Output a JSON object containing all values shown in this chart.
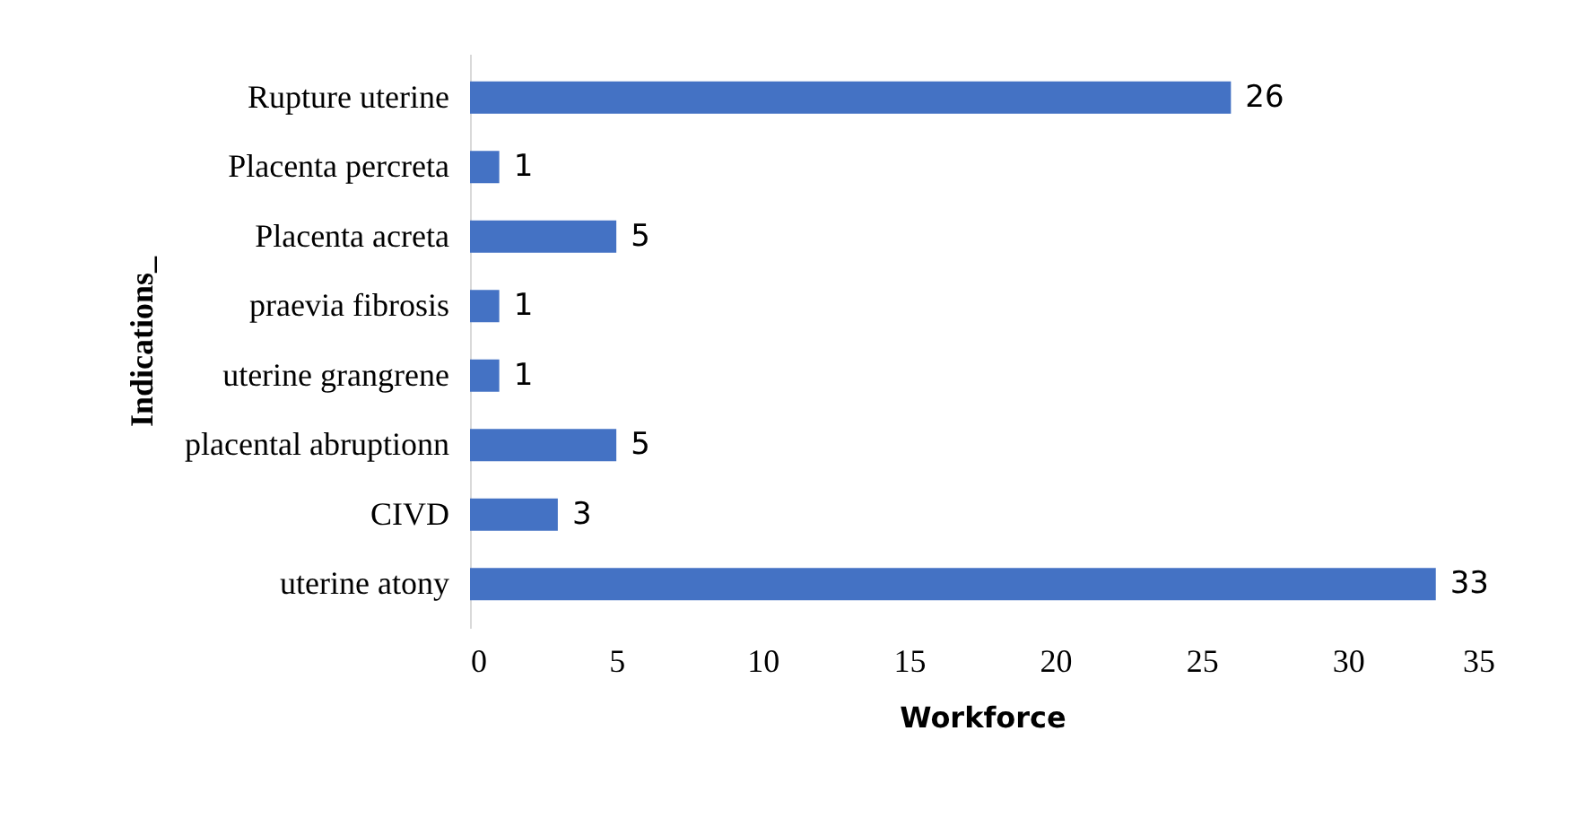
{
  "chart_data": {
    "type": "bar",
    "orientation": "horizontal",
    "xlabel": "Workforce",
    "ylabel": "Indications_",
    "categories": [
      "Rupture uterine",
      "Placenta percreta",
      "Placenta acreta",
      "praevia fibrosis",
      "uterine grangrene",
      "placental abruptionn",
      "CIVD",
      "uterine atony"
    ],
    "values": [
      26,
      1,
      5,
      1,
      1,
      5,
      3,
      33
    ],
    "color": "#4472c4",
    "xlim": [
      0,
      35
    ],
    "xticks": [
      0,
      5,
      10,
      15,
      20,
      25,
      30,
      35
    ],
    "grid": false,
    "data_labels": true
  }
}
